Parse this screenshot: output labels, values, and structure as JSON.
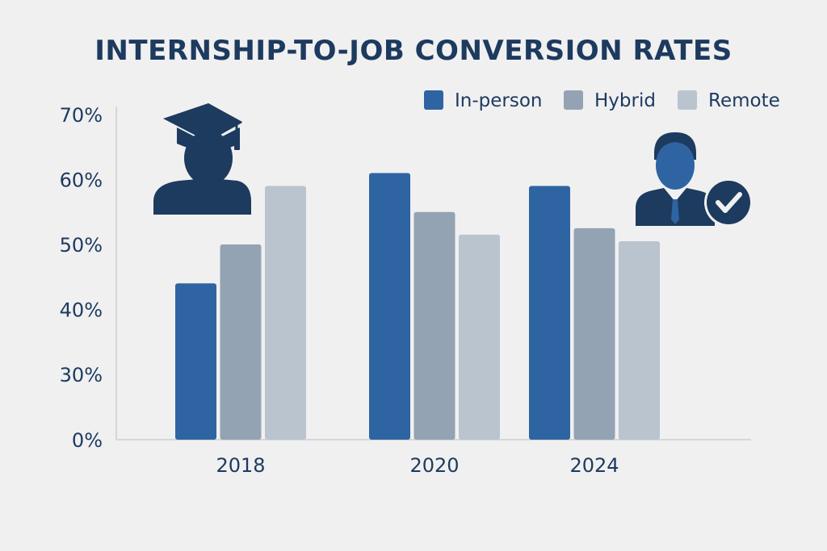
{
  "chart_data": {
    "type": "bar",
    "title": "INTERNSHIP-TO-JOB CONVERSION RATES",
    "xlabel": "",
    "ylabel": "",
    "categories": [
      "2018",
      "2020",
      "2024"
    ],
    "series": [
      {
        "name": "In-person",
        "values": [
          44,
          61,
          59
        ],
        "color": "#2f64a2"
      },
      {
        "name": "Hybrid",
        "values": [
          50,
          55,
          52.5
        ],
        "color": "#94a3b3"
      },
      {
        "name": "Remote",
        "values": [
          59,
          51.5,
          50.5
        ],
        "color": "#b9c4cf"
      }
    ],
    "y_ticks": [
      {
        "value": 0,
        "label": "0%"
      },
      {
        "value": 30,
        "label": "30%"
      },
      {
        "value": 40,
        "label": "40%"
      },
      {
        "value": 50,
        "label": "50%"
      },
      {
        "value": 60,
        "label": "60%"
      },
      {
        "value": 70,
        "label": "70%"
      }
    ],
    "y_axis_break": "between 0% and 30%",
    "ylim": [
      0,
      70
    ],
    "grid": false,
    "legend_position": "top-right"
  },
  "icons": {
    "left": "graduate-icon",
    "right": "hired-professional-check-icon"
  },
  "colors": {
    "background": "#f0f0f1",
    "text": "#1d3a5f",
    "icon": "#1d3a5f",
    "axis": "#d4d6da"
  }
}
